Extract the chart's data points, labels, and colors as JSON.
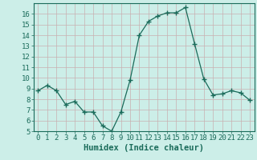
{
  "x": [
    0,
    1,
    2,
    3,
    4,
    5,
    6,
    7,
    8,
    9,
    10,
    11,
    12,
    13,
    14,
    15,
    16,
    17,
    18,
    19,
    20,
    21,
    22,
    23
  ],
  "y": [
    8.8,
    9.3,
    8.8,
    7.5,
    7.8,
    6.8,
    6.8,
    5.5,
    5.0,
    6.8,
    9.8,
    14.0,
    15.3,
    15.8,
    16.1,
    16.1,
    16.6,
    13.2,
    9.9,
    8.4,
    8.5,
    8.8,
    8.6,
    7.9
  ],
  "line_color": "#1a6b5a",
  "marker": "+",
  "marker_size": 4,
  "bg_color": "#cceee8",
  "grid_color": "#c8b0b0",
  "xlabel": "Humidex (Indice chaleur)",
  "ylim": [
    5,
    17
  ],
  "xlim": [
    -0.5,
    23.5
  ],
  "yticks": [
    5,
    6,
    7,
    8,
    9,
    10,
    11,
    12,
    13,
    14,
    15,
    16
  ],
  "xticks": [
    0,
    1,
    2,
    3,
    4,
    5,
    6,
    7,
    8,
    9,
    10,
    11,
    12,
    13,
    14,
    15,
    16,
    17,
    18,
    19,
    20,
    21,
    22,
    23
  ],
  "tick_color": "#1a6b5a",
  "label_fontsize": 7.5,
  "tick_fontsize": 6.5
}
